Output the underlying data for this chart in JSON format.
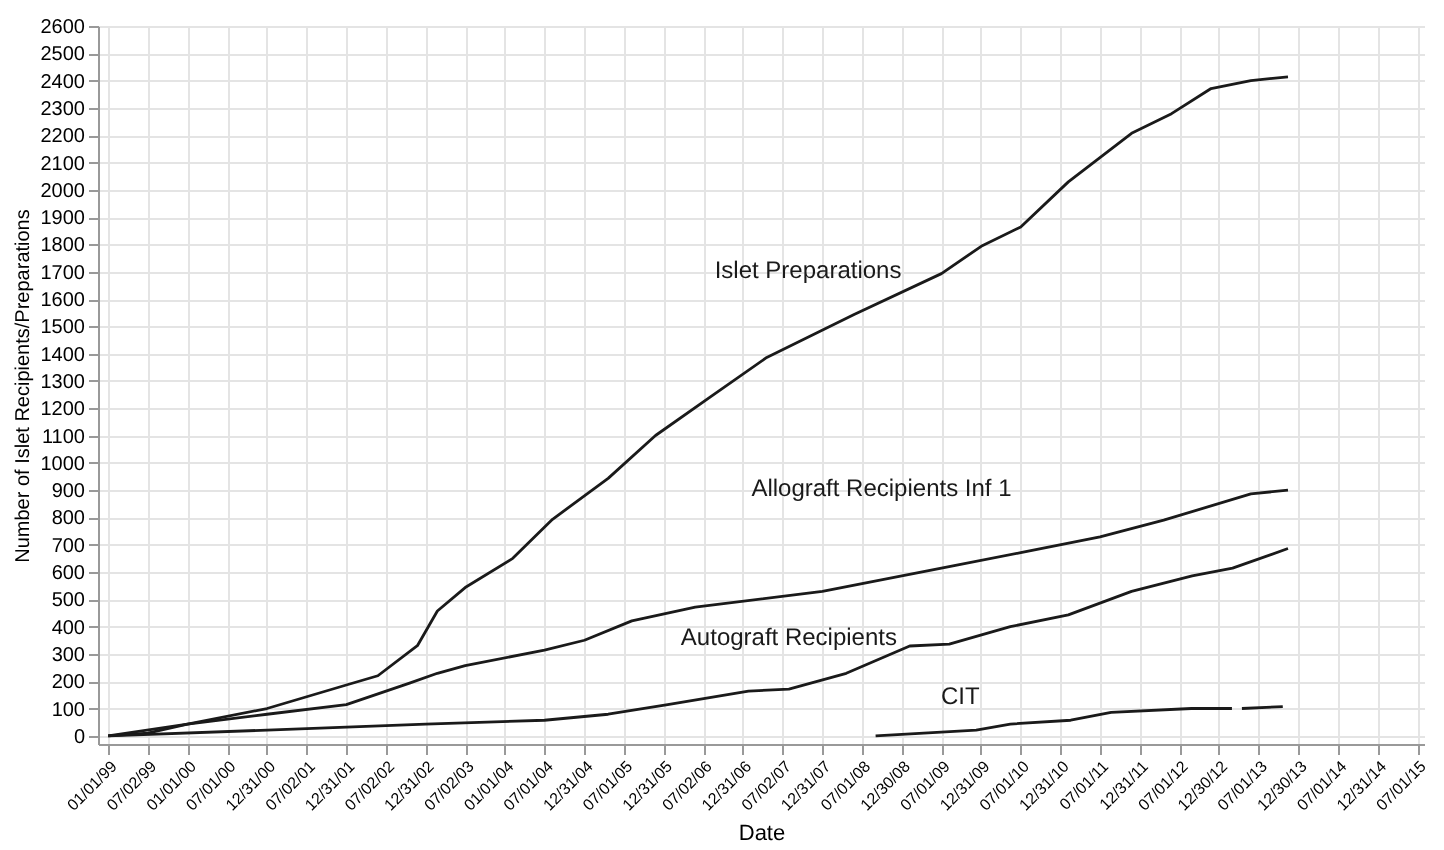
{
  "chart_data": {
    "type": "line",
    "xlabel": "Date",
    "ylabel": "Number of Islet Recipients/Preparations",
    "xlim": [
      "1998-11-15",
      "2015-08-01"
    ],
    "ylim": [
      -30,
      2600
    ],
    "xticks": [
      {
        "value": "1999-01-01",
        "label": "01/01/99"
      },
      {
        "value": "1999-07-02",
        "label": "07/02/99"
      },
      {
        "value": "2000-01-01",
        "label": "01/01/00"
      },
      {
        "value": "2000-07-01",
        "label": "07/01/00"
      },
      {
        "value": "2000-12-31",
        "label": "12/31/00"
      },
      {
        "value": "2001-07-02",
        "label": "07/02/01"
      },
      {
        "value": "2001-12-31",
        "label": "12/31/01"
      },
      {
        "value": "2002-07-02",
        "label": "07/02/02"
      },
      {
        "value": "2002-12-31",
        "label": "12/31/02"
      },
      {
        "value": "2003-07-02",
        "label": "07/02/03"
      },
      {
        "value": "2004-01-01",
        "label": "01/01/04"
      },
      {
        "value": "2004-07-01",
        "label": "07/01/04"
      },
      {
        "value": "2004-12-31",
        "label": "12/31/04"
      },
      {
        "value": "2005-07-01",
        "label": "07/01/05"
      },
      {
        "value": "2005-12-31",
        "label": "12/31/05"
      },
      {
        "value": "2006-07-02",
        "label": "07/02/06"
      },
      {
        "value": "2006-12-31",
        "label": "12/31/06"
      },
      {
        "value": "2007-07-02",
        "label": "07/02/07"
      },
      {
        "value": "2007-12-31",
        "label": "12/31/07"
      },
      {
        "value": "2008-07-01",
        "label": "07/01/08"
      },
      {
        "value": "2008-12-30",
        "label": "12/30/08"
      },
      {
        "value": "2009-07-01",
        "label": "07/01/09"
      },
      {
        "value": "2009-12-31",
        "label": "12/31/09"
      },
      {
        "value": "2010-07-01",
        "label": "07/01/10"
      },
      {
        "value": "2010-12-31",
        "label": "12/31/10"
      },
      {
        "value": "2011-07-01",
        "label": "07/01/11"
      },
      {
        "value": "2011-12-31",
        "label": "12/31/11"
      },
      {
        "value": "2012-07-01",
        "label": "07/01/12"
      },
      {
        "value": "2012-12-30",
        "label": "12/30/12"
      },
      {
        "value": "2013-07-01",
        "label": "07/01/13"
      },
      {
        "value": "2013-12-30",
        "label": "12/30/13"
      },
      {
        "value": "2014-07-01",
        "label": "07/01/14"
      },
      {
        "value": "2014-12-31",
        "label": "12/31/14"
      },
      {
        "value": "2015-07-01",
        "label": "07/01/15"
      }
    ],
    "yticks": [
      0,
      100,
      200,
      300,
      400,
      500,
      600,
      700,
      800,
      900,
      1000,
      1100,
      1200,
      1300,
      1400,
      1500,
      1600,
      1700,
      1800,
      1900,
      2000,
      2100,
      2200,
      2300,
      2400,
      2500,
      2600
    ],
    "grid": true,
    "line_style": "solid",
    "series": [
      {
        "name": "Islet Preparations",
        "color": "#1a1a1a",
        "x": [
          "1999-01-01",
          "1999-07-02",
          "2000-01-01",
          "2001-01-01",
          "2002-01-01",
          "2002-05-26",
          "2002-11-24",
          "2003-02-24",
          "2003-07-02",
          "2004-02-06",
          "2004-08-07",
          "2005-04-20",
          "2005-11-24",
          "2006-08-07",
          "2007-04-20",
          "2008-05-26",
          "2009-07-02",
          "2010-01-01",
          "2010-07-02",
          "2011-02-06",
          "2011-11-24",
          "2012-05-26",
          "2012-11-24",
          "2013-05-26",
          "2013-11-13"
        ],
        "values": [
          0,
          10,
          43,
          100,
          186,
          220,
          330,
          457,
          543,
          650,
          793,
          943,
          1100,
          1243,
          1386,
          1543,
          1693,
          1793,
          1864,
          2029,
          2207,
          2279,
          2371,
          2400,
          2414
        ]
      },
      {
        "name": "Allograft Recipients Inf 1",
        "color": "#1a1a1a",
        "x": [
          "1999-01-01",
          "2000-01-01",
          "2001-01-01",
          "2002-01-01",
          "2002-10-19",
          "2003-02-24",
          "2003-07-02",
          "2004-07-01",
          "2005-01-01",
          "2005-08-07",
          "2006-05-26",
          "2008-01-01",
          "2009-07-02",
          "2010-07-02",
          "2011-07-02",
          "2012-04-20",
          "2013-05-26",
          "2013-11-13"
        ],
        "values": [
          0,
          43,
          79,
          114,
          193,
          229,
          257,
          314,
          350,
          421,
          471,
          529,
          614,
          671,
          729,
          790,
          886,
          900
        ]
      },
      {
        "name": "Autograft Recipients",
        "color": "#1a1a1a",
        "x": [
          "1999-01-01",
          "2001-01-01",
          "2003-01-01",
          "2004-07-01",
          "2005-04-20",
          "2006-01-19",
          "2007-01-26",
          "2007-07-31",
          "2008-04-20",
          "2009-02-06",
          "2009-08-07",
          "2010-05-15",
          "2011-02-06",
          "2011-11-24",
          "2012-08-29",
          "2013-03-03",
          "2013-11-13"
        ],
        "values": [
          0,
          21,
          43,
          57,
          79,
          114,
          164,
          171,
          229,
          329,
          336,
          400,
          443,
          529,
          586,
          614,
          686
        ]
      },
      {
        "name": "CIT",
        "color": "#1a1a1a",
        "x": [
          "2008-09-02",
          "2009-12-09",
          "2010-05-15",
          "2011-02-17",
          "2011-08-22",
          "2012-08-25",
          "2013-02-28",
          "2013-03-15",
          "2013-04-15",
          "2013-10-20"
        ],
        "values": [
          0,
          21,
          43,
          57,
          86,
          100,
          100,
          null,
          100,
          107
        ]
      }
    ]
  }
}
